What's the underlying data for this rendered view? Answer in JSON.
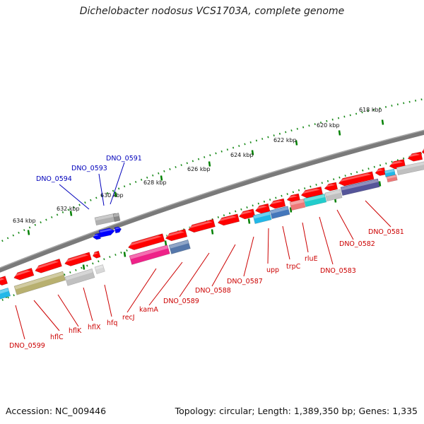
{
  "title": "Dichelobacter nodosus VCS1703A, complete genome",
  "footer": {
    "accession": "Accession: NC_009446",
    "summary": "Topology: circular; Length: 1,389,350 bp; Genes: 1,335"
  },
  "colors": {
    "backbone": "#808080",
    "cds": "#ff0000",
    "tick_major": "#008000",
    "label_red": "#cc0000",
    "label_blue": "#0000bb",
    "feature_blue": "#0000ff"
  },
  "scale_labels": [
    "618 kbp",
    "620 kbp",
    "622 kbp",
    "624 kbp",
    "626 kbp",
    "628 kbp",
    "630 kbp",
    "632 kbp",
    "634 kbp"
  ],
  "genes_outer": [
    "DNO_0594",
    "DNO_0593",
    "DNO_0591"
  ],
  "genes_inner": [
    "DNO_0599",
    "hflC",
    "hflK",
    "hflX",
    "hfq",
    "recJ",
    "kamA",
    "DNO_0589",
    "DNO_0588",
    "DNO_0587",
    "upp",
    "trpC",
    "rluE",
    "DNO_0583",
    "DNO_0582",
    "DNO_0581"
  ]
}
